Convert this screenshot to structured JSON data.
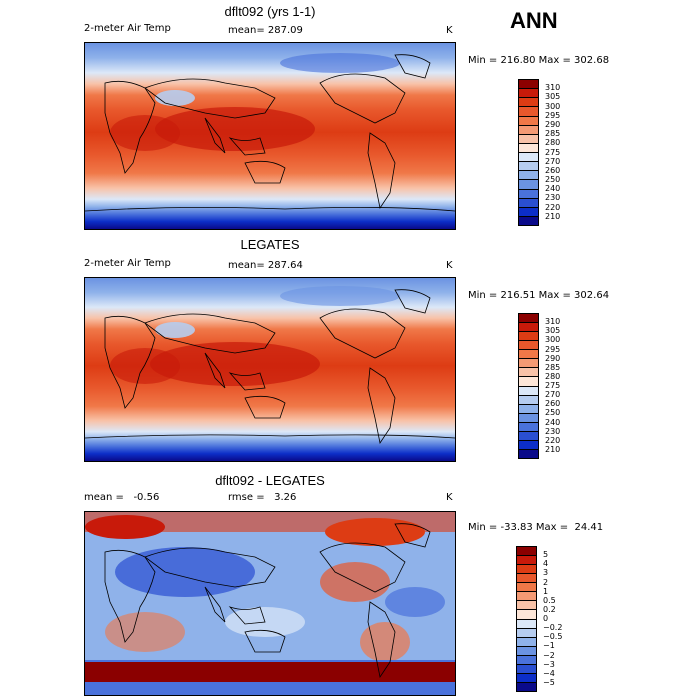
{
  "season_label": "ANN",
  "panels": [
    {
      "title": "dflt092 (yrs 1-1)",
      "left_label": "2-meter Air Temp",
      "center_label": "mean= 287.09",
      "unit": "K",
      "stats": "Min = 216.80 Max = 302.68",
      "colorbar": {
        "labels": [
          "310",
          "305",
          "300",
          "295",
          "290",
          "285",
          "280",
          "275",
          "270",
          "260",
          "250",
          "240",
          "230",
          "220",
          "210"
        ],
        "colors": [
          "#8b0000",
          "#c81a0a",
          "#dd3c14",
          "#e8582c",
          "#f07848",
          "#f49a74",
          "#f8c2a8",
          "#fde6d8",
          "#dce8f8",
          "#b6cdf0",
          "#8fb2ea",
          "#6b93e2",
          "#4a72db",
          "#2a4fd1",
          "#0c2ec8",
          "#0a0a8a"
        ]
      },
      "map_style": "temperature"
    },
    {
      "title": "LEGATES",
      "left_label": "2-meter Air Temp",
      "center_label": "mean= 287.64",
      "unit": "K",
      "stats": "Min = 216.51 Max = 302.64",
      "colorbar": {
        "labels": [
          "310",
          "305",
          "300",
          "295",
          "290",
          "285",
          "280",
          "275",
          "270",
          "260",
          "250",
          "240",
          "230",
          "220",
          "210"
        ],
        "colors": [
          "#8b0000",
          "#c81a0a",
          "#dd3c14",
          "#e8582c",
          "#f07848",
          "#f49a74",
          "#f8c2a8",
          "#fde6d8",
          "#dce8f8",
          "#b6cdf0",
          "#8fb2ea",
          "#6b93e2",
          "#4a72db",
          "#2a4fd1",
          "#0c2ec8",
          "#0a0a8a"
        ]
      },
      "map_style": "temperature"
    },
    {
      "title": "dflt092 - LEGATES",
      "left_label": "mean =   -0.56",
      "center_label": "rmse =   3.26",
      "unit": "K",
      "stats": "Min = -33.83 Max =  24.41",
      "colorbar": {
        "labels": [
          "5",
          "4",
          "3",
          "2",
          "1",
          "0.5",
          "0.2",
          "0",
          "−0.2",
          "−0.5",
          "−1",
          "−2",
          "−3",
          "−4",
          "−5"
        ],
        "colors": [
          "#8b0000",
          "#c81a0a",
          "#dd3c14",
          "#e8582c",
          "#f07848",
          "#f49a74",
          "#f8c2a8",
          "#fde6d8",
          "#dce8f8",
          "#b6cdf0",
          "#8fb2ea",
          "#6b93e2",
          "#4a72db",
          "#2a4fd1",
          "#0c2ec8",
          "#0a0a8a"
        ]
      },
      "map_style": "difference"
    }
  ]
}
